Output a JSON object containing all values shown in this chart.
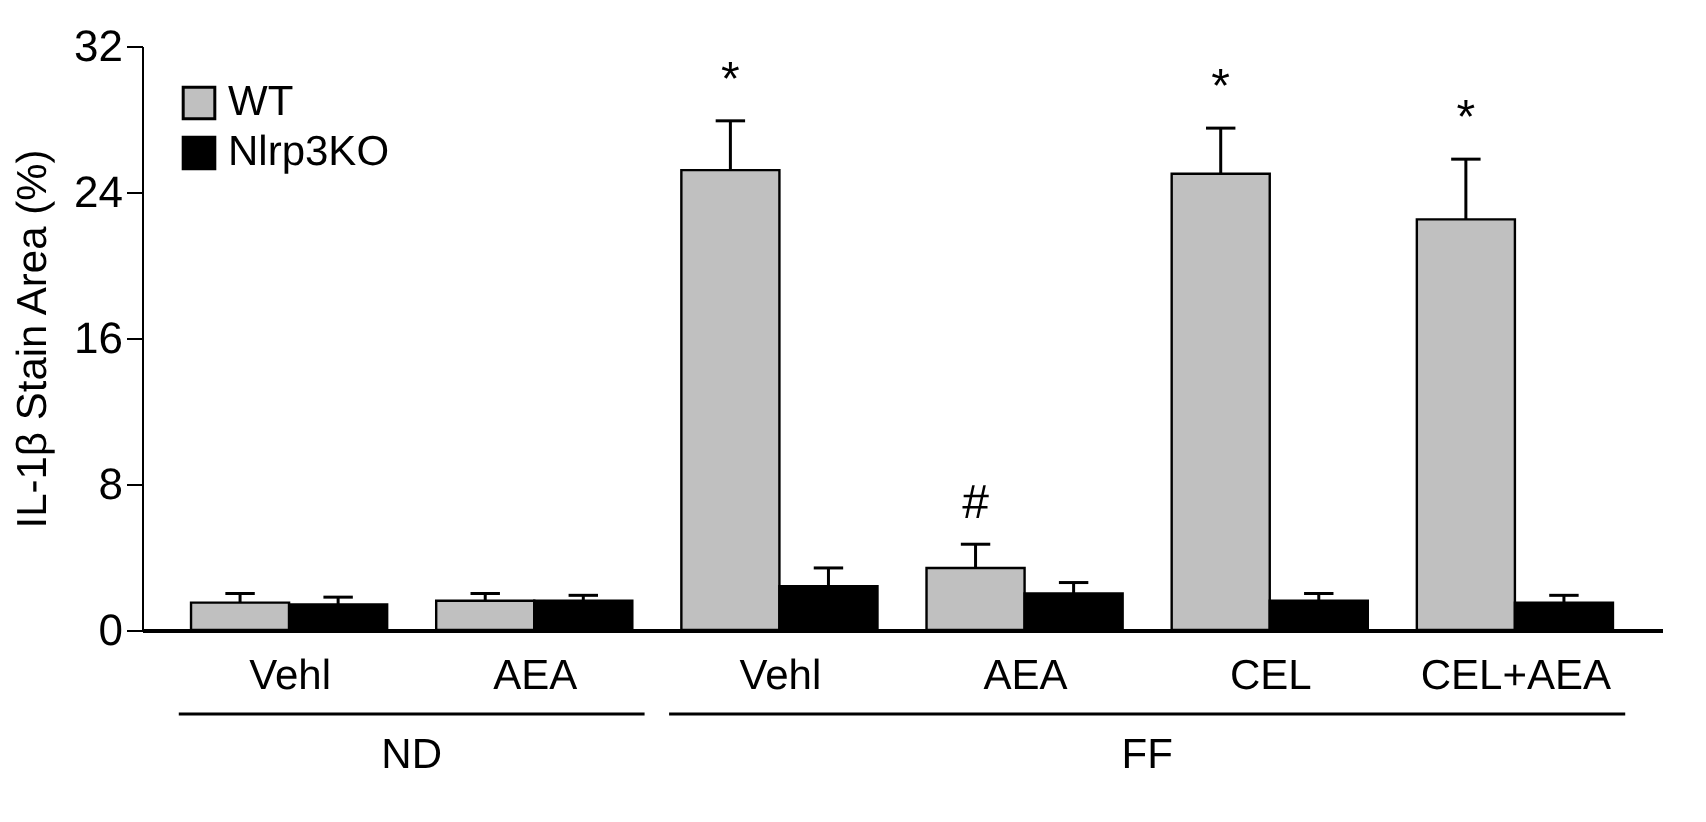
{
  "chart_data": {
    "type": "bar",
    "ylabel": "IL-1β Stain Area (%)",
    "categories": [
      "Vehl",
      "AEA",
      "Vehl",
      "AEA",
      "CEL",
      "CEL+AEA"
    ],
    "series": [
      {
        "name": "WT",
        "color": "#c0c0c0",
        "values": [
          1.5,
          1.6,
          25.2,
          3.4,
          25.0,
          22.5
        ],
        "errors": [
          [
            1.5,
            2.0
          ],
          [
            1.6,
            2.0
          ],
          [
            25.2,
            27.9
          ],
          [
            3.4,
            4.7
          ],
          [
            25.0,
            27.5
          ],
          [
            22.5,
            25.8
          ]
        ],
        "value_labels": [
          null,
          null,
          "*",
          "#",
          "*",
          "*"
        ]
      },
      {
        "name": "Nlrp3KO",
        "color": "#000000",
        "values": [
          1.4,
          1.6,
          2.4,
          2.0,
          1.6,
          1.5
        ],
        "errors": [
          [
            1.4,
            1.8
          ],
          [
            1.6,
            1.9
          ],
          [
            2.4,
            3.4
          ],
          [
            2.0,
            2.6
          ],
          [
            1.6,
            2.0
          ],
          [
            1.5,
            1.9
          ]
        ]
      }
    ],
    "ylim": [
      0,
      32
    ],
    "yticks": [
      0,
      8,
      16,
      24,
      32
    ],
    "grid": false,
    "legend": "top left",
    "annotations": [
      "ND",
      "FF"
    ]
  }
}
